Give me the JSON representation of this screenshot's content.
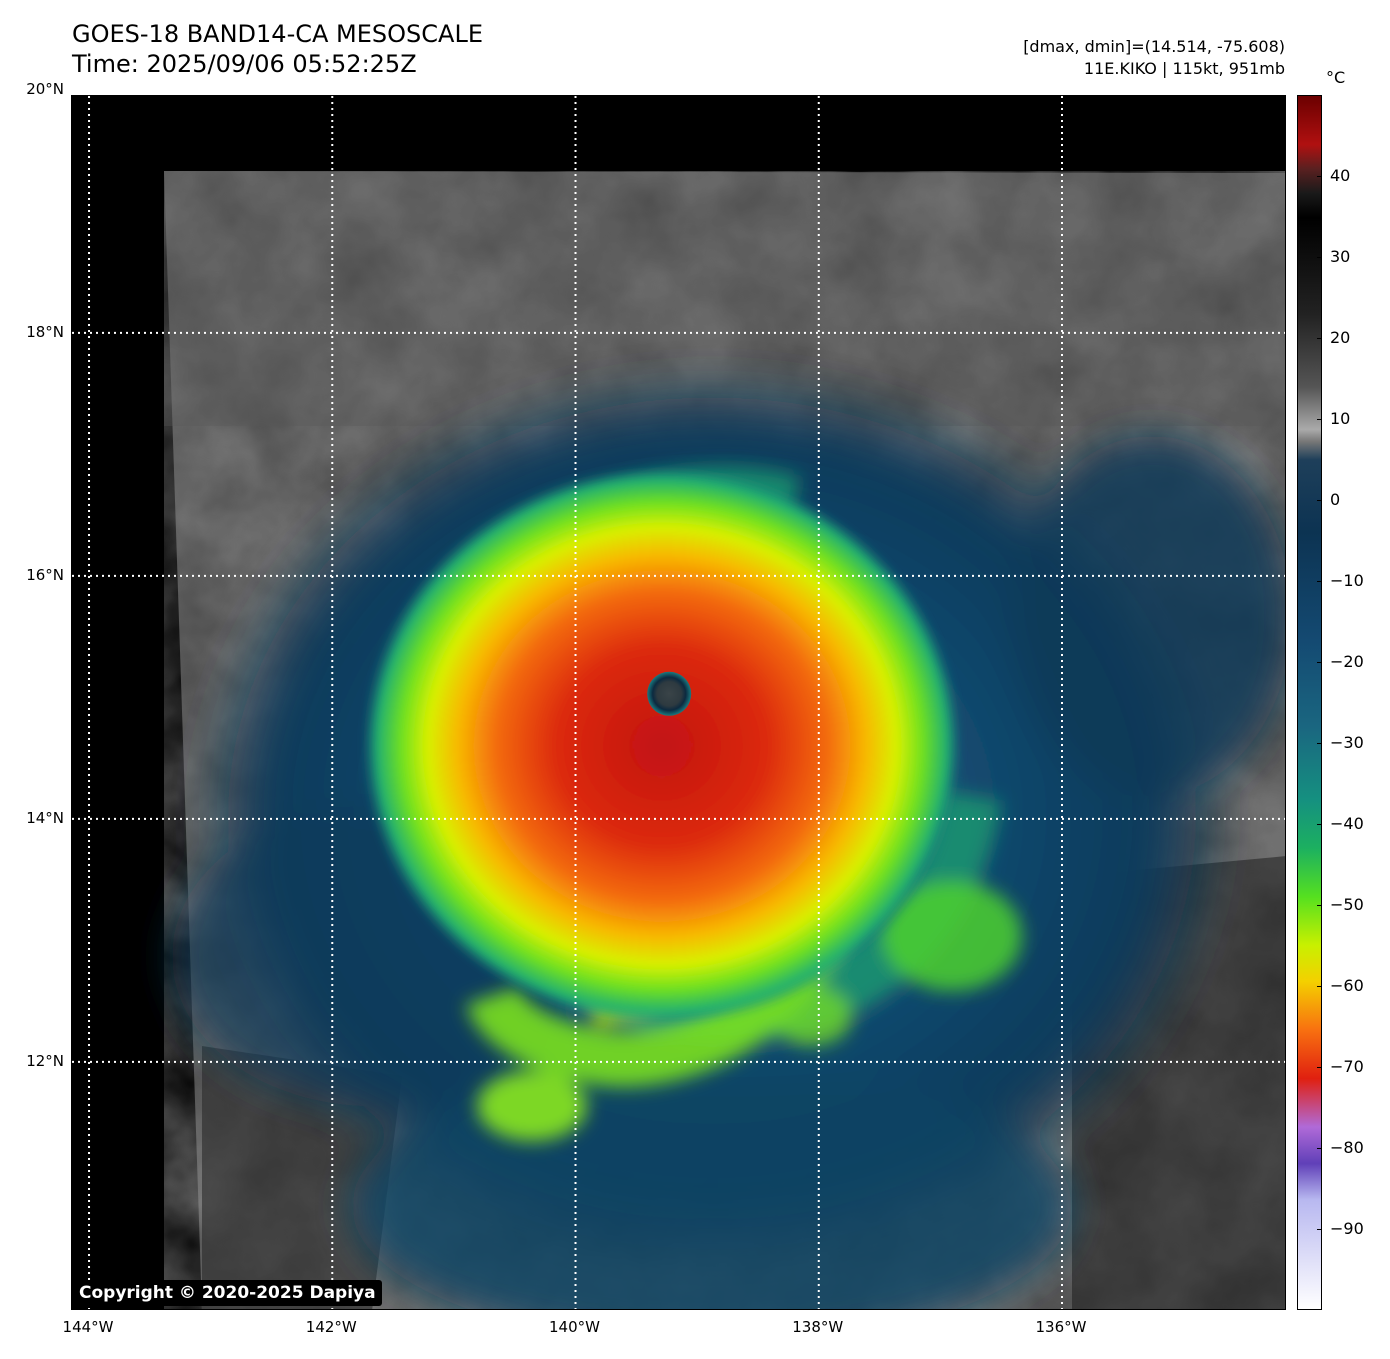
{
  "title": {
    "line1": "GOES-18 BAND14-CA MESOSCALE",
    "line2": "Time: 2025/09/06 05:52:25Z"
  },
  "info": {
    "line1": "[dmax, dmin]=(14.514, -75.608)",
    "line2": "11E.KIKO | 115kt, 951mb"
  },
  "latitudes": [
    {
      "value": 20,
      "label": "20°N"
    },
    {
      "value": 18,
      "label": "18°N"
    },
    {
      "value": 16,
      "label": "16°N"
    },
    {
      "value": 14,
      "label": "14°N"
    },
    {
      "value": 12,
      "label": "12°N"
    }
  ],
  "longitudes": [
    {
      "value": -144,
      "label": "144°W"
    },
    {
      "value": -142,
      "label": "142°W"
    },
    {
      "value": -140,
      "label": "140°W"
    },
    {
      "value": -138,
      "label": "138°W"
    },
    {
      "value": -136,
      "label": "136°W"
    }
  ],
  "extent": {
    "lon_min": -144.14,
    "lon_max": -134.15,
    "lat_min": 9.95,
    "lat_max": 19.95
  },
  "storm_center": {
    "lat": 15.03,
    "lon": -139.23
  },
  "colorbar": {
    "unit": "°C",
    "min": -100,
    "max": 50,
    "ticks": [
      40,
      30,
      20,
      10,
      0,
      -10,
      -20,
      -30,
      -40,
      -50,
      -60,
      -70,
      -80,
      -90
    ],
    "tick_labels": [
      "40",
      "30",
      "20",
      "10",
      "0",
      "−10",
      "−20",
      "−30",
      "−40",
      "−50",
      "−60",
      "−70",
      "−80",
      "−90"
    ]
  },
  "copyright": "Copyright © 2020-2025 Dapiya",
  "colors": {
    "background": "#ffffff",
    "gridline": "#ffffff",
    "cold_top": "#e02010",
    "eye": "#2e3a40"
  }
}
